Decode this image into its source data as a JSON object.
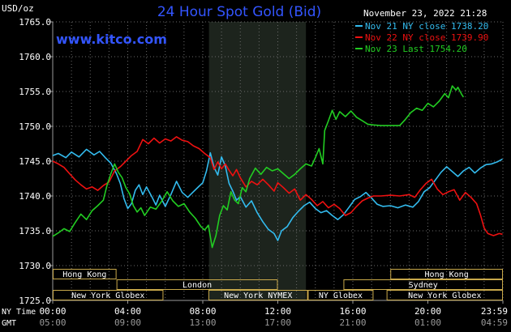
{
  "chart_data": {
    "type": "line",
    "title": "24 Hour Spot Gold (Bid)",
    "watermark": "www.kitco.com",
    "unit_label": "USD/oz",
    "timestamp": "November 23, 2022 21:28",
    "ylim": [
      1725.0,
      1765.0
    ],
    "ytick_values": [
      1725.0,
      1730.0,
      1735.0,
      1740.0,
      1745.0,
      1750.0,
      1755.0,
      1760.0,
      1765.0
    ],
    "ytick_labels": [
      "1725.0",
      "1730.0",
      "1735.0",
      "1740.0",
      "1745.0",
      "1750.0",
      "1755.0",
      "1760.0",
      "1765.0"
    ],
    "x_range_hours": [
      0,
      24
    ],
    "xtick_hours": [
      0,
      4,
      8,
      12,
      16,
      20,
      24
    ],
    "xtick_labels_ny": [
      "00:00",
      "04:00",
      "08:00",
      "12:00",
      "16:00",
      "20:00",
      "23:59"
    ],
    "xtick_labels_gmt": [
      "05:00",
      "09:00",
      "13:00",
      "17:00",
      "21:00",
      "01:00",
      "04:59"
    ],
    "ny_time_label": "NY Time",
    "gmt_label": "GMT",
    "shaded_hours": [
      8.33,
      13.5
    ],
    "grid": true,
    "legend_position": "top-right",
    "series": [
      {
        "name": "Nov 21 NY close 1738.20",
        "color": "#33bbee",
        "points": [
          [
            0,
            1745.8
          ],
          [
            0.3,
            1746.1
          ],
          [
            0.7,
            1745.5
          ],
          [
            1.0,
            1746.3
          ],
          [
            1.4,
            1745.6
          ],
          [
            1.8,
            1746.7
          ],
          [
            2.2,
            1745.9
          ],
          [
            2.5,
            1746.4
          ],
          [
            2.8,
            1745.5
          ],
          [
            3.1,
            1744.7
          ],
          [
            3.4,
            1743.2
          ],
          [
            3.6,
            1741.8
          ],
          [
            3.8,
            1739.6
          ],
          [
            4.0,
            1738.2
          ],
          [
            4.2,
            1738.9
          ],
          [
            4.4,
            1740.8
          ],
          [
            4.6,
            1741.6
          ],
          [
            4.8,
            1740.2
          ],
          [
            5.0,
            1741.3
          ],
          [
            5.3,
            1739.8
          ],
          [
            5.5,
            1738.7
          ],
          [
            5.7,
            1740.1
          ],
          [
            6.0,
            1738.5
          ],
          [
            6.3,
            1740.2
          ],
          [
            6.6,
            1742.1
          ],
          [
            6.9,
            1740.5
          ],
          [
            7.2,
            1739.8
          ],
          [
            7.5,
            1740.6
          ],
          [
            7.8,
            1741.4
          ],
          [
            8.0,
            1741.9
          ],
          [
            8.2,
            1743.6
          ],
          [
            8.4,
            1746.2
          ],
          [
            8.6,
            1744.1
          ],
          [
            8.8,
            1743.0
          ],
          [
            9.0,
            1745.6
          ],
          [
            9.2,
            1744.3
          ],
          [
            9.4,
            1741.8
          ],
          [
            9.6,
            1740.7
          ],
          [
            9.8,
            1739.4
          ],
          [
            10.0,
            1739.9
          ],
          [
            10.3,
            1738.4
          ],
          [
            10.6,
            1739.3
          ],
          [
            10.9,
            1737.6
          ],
          [
            11.2,
            1736.3
          ],
          [
            11.5,
            1735.2
          ],
          [
            11.8,
            1734.6
          ],
          [
            12.0,
            1733.6
          ],
          [
            12.2,
            1735.0
          ],
          [
            12.5,
            1735.6
          ],
          [
            12.8,
            1736.9
          ],
          [
            13.1,
            1737.8
          ],
          [
            13.4,
            1738.6
          ],
          [
            13.7,
            1739.1
          ],
          [
            14.0,
            1738.2
          ],
          [
            14.3,
            1737.6
          ],
          [
            14.6,
            1737.9
          ],
          [
            14.9,
            1737.2
          ],
          [
            15.2,
            1736.6
          ],
          [
            15.5,
            1737.3
          ],
          [
            15.8,
            1738.4
          ],
          [
            16.1,
            1739.5
          ],
          [
            16.4,
            1739.9
          ],
          [
            16.7,
            1740.5
          ],
          [
            17.0,
            1739.7
          ],
          [
            17.3,
            1738.8
          ],
          [
            17.6,
            1738.5
          ],
          [
            18.0,
            1738.6
          ],
          [
            18.4,
            1738.3
          ],
          [
            18.8,
            1738.7
          ],
          [
            19.2,
            1738.4
          ],
          [
            19.5,
            1739.2
          ],
          [
            19.8,
            1740.6
          ],
          [
            20.1,
            1741.2
          ],
          [
            20.4,
            1742.3
          ],
          [
            20.7,
            1743.4
          ],
          [
            21.0,
            1744.2
          ],
          [
            21.3,
            1743.5
          ],
          [
            21.6,
            1742.8
          ],
          [
            21.9,
            1743.6
          ],
          [
            22.2,
            1744.1
          ],
          [
            22.5,
            1743.3
          ],
          [
            22.8,
            1744.0
          ],
          [
            23.1,
            1744.5
          ],
          [
            23.4,
            1744.6
          ],
          [
            23.7,
            1744.9
          ],
          [
            23.98,
            1745.3
          ]
        ]
      },
      {
        "name": "Nov 22 NY close 1739.90",
        "color": "#ee1111",
        "points": [
          [
            0,
            1745.0
          ],
          [
            0.3,
            1744.6
          ],
          [
            0.6,
            1744.1
          ],
          [
            0.9,
            1743.2
          ],
          [
            1.2,
            1742.3
          ],
          [
            1.5,
            1741.6
          ],
          [
            1.8,
            1741.0
          ],
          [
            2.1,
            1741.3
          ],
          [
            2.4,
            1740.8
          ],
          [
            2.7,
            1741.5
          ],
          [
            3.0,
            1742.0
          ],
          [
            3.3,
            1743.6
          ],
          [
            3.6,
            1744.2
          ],
          [
            3.9,
            1745.0
          ],
          [
            4.2,
            1745.8
          ],
          [
            4.5,
            1746.4
          ],
          [
            4.8,
            1748.1
          ],
          [
            5.1,
            1747.5
          ],
          [
            5.4,
            1748.3
          ],
          [
            5.7,
            1747.6
          ],
          [
            6.0,
            1748.2
          ],
          [
            6.3,
            1747.9
          ],
          [
            6.6,
            1748.5
          ],
          [
            6.9,
            1748.0
          ],
          [
            7.2,
            1747.8
          ],
          [
            7.5,
            1747.2
          ],
          [
            7.8,
            1746.8
          ],
          [
            8.1,
            1746.1
          ],
          [
            8.4,
            1745.5
          ],
          [
            8.6,
            1743.8
          ],
          [
            8.8,
            1744.9
          ],
          [
            9.0,
            1743.9
          ],
          [
            9.2,
            1744.6
          ],
          [
            9.4,
            1743.7
          ],
          [
            9.6,
            1742.9
          ],
          [
            9.8,
            1743.8
          ],
          [
            10.0,
            1742.6
          ],
          [
            10.3,
            1741.3
          ],
          [
            10.6,
            1742.1
          ],
          [
            10.9,
            1741.6
          ],
          [
            11.2,
            1742.4
          ],
          [
            11.5,
            1741.6
          ],
          [
            11.8,
            1740.7
          ],
          [
            12.0,
            1741.9
          ],
          [
            12.3,
            1741.2
          ],
          [
            12.6,
            1740.4
          ],
          [
            12.9,
            1741.0
          ],
          [
            13.2,
            1739.4
          ],
          [
            13.5,
            1740.2
          ],
          [
            13.8,
            1739.5
          ],
          [
            14.1,
            1738.6
          ],
          [
            14.4,
            1739.2
          ],
          [
            14.7,
            1738.3
          ],
          [
            15.0,
            1738.8
          ],
          [
            15.3,
            1738.2
          ],
          [
            15.6,
            1737.2
          ],
          [
            15.9,
            1737.6
          ],
          [
            16.2,
            1738.5
          ],
          [
            16.5,
            1739.3
          ],
          [
            16.8,
            1739.7
          ],
          [
            17.1,
            1740.0
          ],
          [
            17.5,
            1740.0
          ],
          [
            18.0,
            1740.1
          ],
          [
            18.5,
            1740.0
          ],
          [
            19.0,
            1740.2
          ],
          [
            19.3,
            1739.8
          ],
          [
            19.6,
            1740.9
          ],
          [
            19.9,
            1741.8
          ],
          [
            20.2,
            1742.4
          ],
          [
            20.5,
            1741.0
          ],
          [
            20.8,
            1740.2
          ],
          [
            21.1,
            1740.6
          ],
          [
            21.4,
            1740.9
          ],
          [
            21.7,
            1739.4
          ],
          [
            22.0,
            1740.5
          ],
          [
            22.3,
            1739.8
          ],
          [
            22.6,
            1738.9
          ],
          [
            22.8,
            1737.3
          ],
          [
            23.0,
            1735.4
          ],
          [
            23.2,
            1734.6
          ],
          [
            23.5,
            1734.3
          ],
          [
            23.8,
            1734.6
          ],
          [
            23.98,
            1734.5
          ]
        ]
      },
      {
        "name": "Nov 23 Last 1754.20",
        "color": "#22cc22",
        "points": [
          [
            0,
            1734.2
          ],
          [
            0.3,
            1734.7
          ],
          [
            0.6,
            1735.3
          ],
          [
            0.9,
            1734.9
          ],
          [
            1.2,
            1736.2
          ],
          [
            1.5,
            1737.4
          ],
          [
            1.8,
            1736.6
          ],
          [
            2.1,
            1737.9
          ],
          [
            2.4,
            1738.6
          ],
          [
            2.7,
            1739.4
          ],
          [
            2.9,
            1741.6
          ],
          [
            3.1,
            1743.2
          ],
          [
            3.3,
            1744.6
          ],
          [
            3.5,
            1743.4
          ],
          [
            3.7,
            1742.6
          ],
          [
            3.9,
            1741.2
          ],
          [
            4.1,
            1740.3
          ],
          [
            4.3,
            1738.6
          ],
          [
            4.5,
            1737.7
          ],
          [
            4.7,
            1738.3
          ],
          [
            4.9,
            1737.2
          ],
          [
            5.2,
            1738.4
          ],
          [
            5.5,
            1738.1
          ],
          [
            5.8,
            1739.2
          ],
          [
            6.1,
            1740.6
          ],
          [
            6.4,
            1739.3
          ],
          [
            6.7,
            1738.5
          ],
          [
            7.0,
            1738.9
          ],
          [
            7.3,
            1737.7
          ],
          [
            7.6,
            1736.8
          ],
          [
            7.9,
            1735.6
          ],
          [
            8.1,
            1735.1
          ],
          [
            8.3,
            1735.8
          ],
          [
            8.5,
            1732.6
          ],
          [
            8.7,
            1734.3
          ],
          [
            8.9,
            1737.2
          ],
          [
            9.1,
            1738.6
          ],
          [
            9.3,
            1738.0
          ],
          [
            9.5,
            1740.6
          ],
          [
            9.7,
            1739.4
          ],
          [
            9.9,
            1738.9
          ],
          [
            10.1,
            1741.2
          ],
          [
            10.3,
            1740.6
          ],
          [
            10.5,
            1742.5
          ],
          [
            10.8,
            1744.0
          ],
          [
            11.1,
            1743.1
          ],
          [
            11.4,
            1744.1
          ],
          [
            11.7,
            1743.6
          ],
          [
            12.0,
            1743.9
          ],
          [
            12.3,
            1743.2
          ],
          [
            12.6,
            1742.5
          ],
          [
            12.9,
            1743.1
          ],
          [
            13.2,
            1743.9
          ],
          [
            13.5,
            1744.6
          ],
          [
            13.8,
            1744.3
          ],
          [
            14.0,
            1745.5
          ],
          [
            14.2,
            1746.8
          ],
          [
            14.4,
            1744.6
          ],
          [
            14.5,
            1749.4
          ],
          [
            14.7,
            1750.8
          ],
          [
            14.9,
            1752.3
          ],
          [
            15.1,
            1751.0
          ],
          [
            15.3,
            1752.1
          ],
          [
            15.6,
            1751.4
          ],
          [
            15.9,
            1752.2
          ],
          [
            16.2,
            1751.3
          ],
          [
            16.5,
            1750.8
          ],
          [
            16.8,
            1750.3
          ],
          [
            17.1,
            1750.2
          ],
          [
            17.5,
            1750.1
          ],
          [
            18.0,
            1750.1
          ],
          [
            18.5,
            1750.1
          ],
          [
            18.8,
            1751.0
          ],
          [
            19.1,
            1752.0
          ],
          [
            19.4,
            1752.6
          ],
          [
            19.7,
            1752.3
          ],
          [
            20.0,
            1753.3
          ],
          [
            20.3,
            1752.8
          ],
          [
            20.6,
            1753.6
          ],
          [
            20.9,
            1754.7
          ],
          [
            21.1,
            1754.1
          ],
          [
            21.3,
            1755.8
          ],
          [
            21.5,
            1755.2
          ],
          [
            21.6,
            1755.6
          ],
          [
            21.8,
            1754.6
          ],
          [
            21.9,
            1754.2
          ]
        ]
      }
    ],
    "sessions": [
      {
        "label": "Hong Kong",
        "start": 0,
        "end": 3.4,
        "row": 0
      },
      {
        "label": "Hong Kong",
        "start": 18.0,
        "end": 24,
        "row": 0
      },
      {
        "label": "London",
        "start": 3.4,
        "end": 12,
        "row": 1
      },
      {
        "label": "Sydney",
        "start": 15.5,
        "end": 24,
        "row": 1
      },
      {
        "label": "New York Globex",
        "start": 0,
        "end": 5.9,
        "row": 2
      },
      {
        "label": "New York NYMEX",
        "start": 8.3,
        "end": 13.6,
        "row": 2
      },
      {
        "label": "NY Globex",
        "start": 13.6,
        "end": 17.1,
        "row": 2
      },
      {
        "label": "New York Globex",
        "start": 17.8,
        "end": 24,
        "row": 2
      }
    ]
  }
}
